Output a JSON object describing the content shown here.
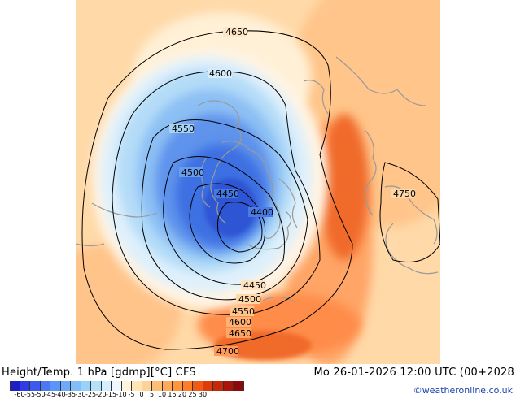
{
  "map": {
    "contour_labels": [
      "4650",
      "4600",
      "4550",
      "4500",
      "4450",
      "4400",
      "4450",
      "4500",
      "4550",
      "4600",
      "4650",
      "4700",
      "4750"
    ]
  },
  "footer": {
    "title": "Height/Temp. 1 hPa [gdmp][°C] CFS",
    "validity": "Mo 26-01-2026 12:00 UTC (00+2028",
    "credit": "©weatheronline.co.uk"
  },
  "legend": {
    "colors": [
      "#1e1ec8",
      "#2d3ce6",
      "#3c5af0",
      "#4b78f5",
      "#5a96fa",
      "#6eaafa",
      "#82befa",
      "#96d2fa",
      "#b4e1fa",
      "#d2f0ff",
      "#f0f8ff",
      "#fff5dc",
      "#ffe6b4",
      "#ffd296",
      "#ffbe78",
      "#ffaa5a",
      "#ff963c",
      "#ff7d28",
      "#f05a14",
      "#dc3c0a",
      "#c8280a",
      "#aa140a",
      "#8c0a0a"
    ],
    "ticks": [
      "-60",
      "-55",
      "-50",
      "-45",
      "-40",
      "-35",
      "-30",
      "-25",
      "-20",
      "-15",
      "-10",
      "-5",
      "0",
      "5",
      "10",
      "15",
      "20",
      "25",
      "30"
    ]
  }
}
